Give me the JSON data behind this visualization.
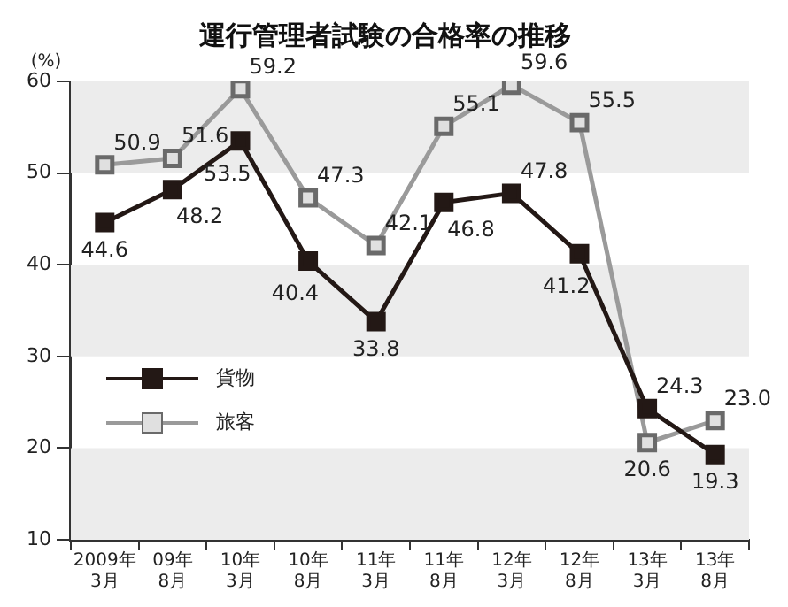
{
  "chart_data": {
    "type": "line",
    "title": "運行管理者試験の合格率の推移",
    "ylabel": "(%)",
    "categories": [
      "2009年\n3月",
      "09年\n8月",
      "10年\n3月",
      "10年\n8月",
      "11年\n3月",
      "11年\n8月",
      "12年\n3月",
      "12年\n8月",
      "13年\n3月",
      "13年\n8月"
    ],
    "series": [
      {
        "name": "貨物",
        "color": "#231815",
        "values": [
          44.6,
          48.2,
          53.5,
          40.4,
          33.8,
          46.8,
          47.8,
          41.2,
          24.3,
          19.3
        ],
        "value_labels": [
          "44.6",
          "48.2",
          "53.5",
          "40.4",
          "33.8",
          "46.8",
          "47.8",
          "41.2",
          "24.3",
          "19.3"
        ]
      },
      {
        "name": "旅客",
        "color": "#9a9a9a",
        "values": [
          50.9,
          51.6,
          59.2,
          47.3,
          42.1,
          55.1,
          59.6,
          55.5,
          20.6,
          23.0
        ],
        "value_labels": [
          "50.9",
          "51.6",
          "59.2",
          "47.3",
          "42.1",
          "55.1",
          "59.6",
          "55.5",
          "20.6",
          "23.0"
        ]
      }
    ],
    "ylim": [
      10,
      60
    ],
    "yticks": [
      10,
      20,
      30,
      40,
      50,
      60
    ],
    "bands": [
      {
        "axis": "y",
        "from": 10,
        "to": 20,
        "color": "#ececec"
      },
      {
        "axis": "y",
        "from": 30,
        "to": 40,
        "color": "#ececec"
      },
      {
        "axis": "y",
        "from": 50,
        "to": 60,
        "color": "#ececec"
      }
    ],
    "legend": "left",
    "marker": "square",
    "line_style": "solid",
    "grid": false
  }
}
